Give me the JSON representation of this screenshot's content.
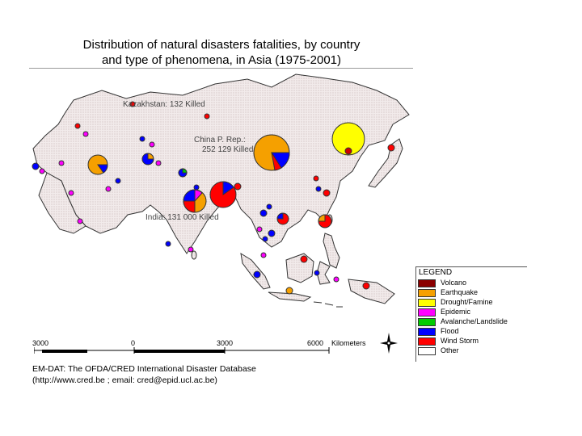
{
  "title": {
    "line1": "Distribution of natural disasters fatalities, by country",
    "line2": "and type of phenomena, in Asia (1975-2001)"
  },
  "map_labels": {
    "kazakhstan": "Kazakhstan: 132 Killed",
    "china_line1": "China P. Rep.:",
    "china_line2": "252 129 Killed",
    "india": "India: 131 000 Killed"
  },
  "legend": {
    "title": "LEGEND",
    "items": [
      {
        "label": "Volcano",
        "color": "#8b0000"
      },
      {
        "label": "Earthquake",
        "color": "#f5a000"
      },
      {
        "label": "Drought/Famine",
        "color": "#ffff00"
      },
      {
        "label": "Epidemic",
        "color": "#ff00ff"
      },
      {
        "label": "Avalanche/Landslide",
        "color": "#00cc00"
      },
      {
        "label": "Flood",
        "color": "#0000ff"
      },
      {
        "label": "Wind Storm",
        "color": "#ff0000"
      },
      {
        "label": "Other",
        "color": "#ffffff"
      }
    ]
  },
  "scale": {
    "left": "3000",
    "zero": "0",
    "mid": "3000",
    "right": "6000",
    "unit": "Kilometers"
  },
  "source": {
    "line1": "EM-DAT: The OFDA/CRED International Disaster Database",
    "line2": "(http://www.cred.be ; email: cred@epid.ucl.ac.be)"
  },
  "colors": {
    "land": "#efe6e6",
    "coast": "#333333",
    "sea": "#ffffff"
  }
}
